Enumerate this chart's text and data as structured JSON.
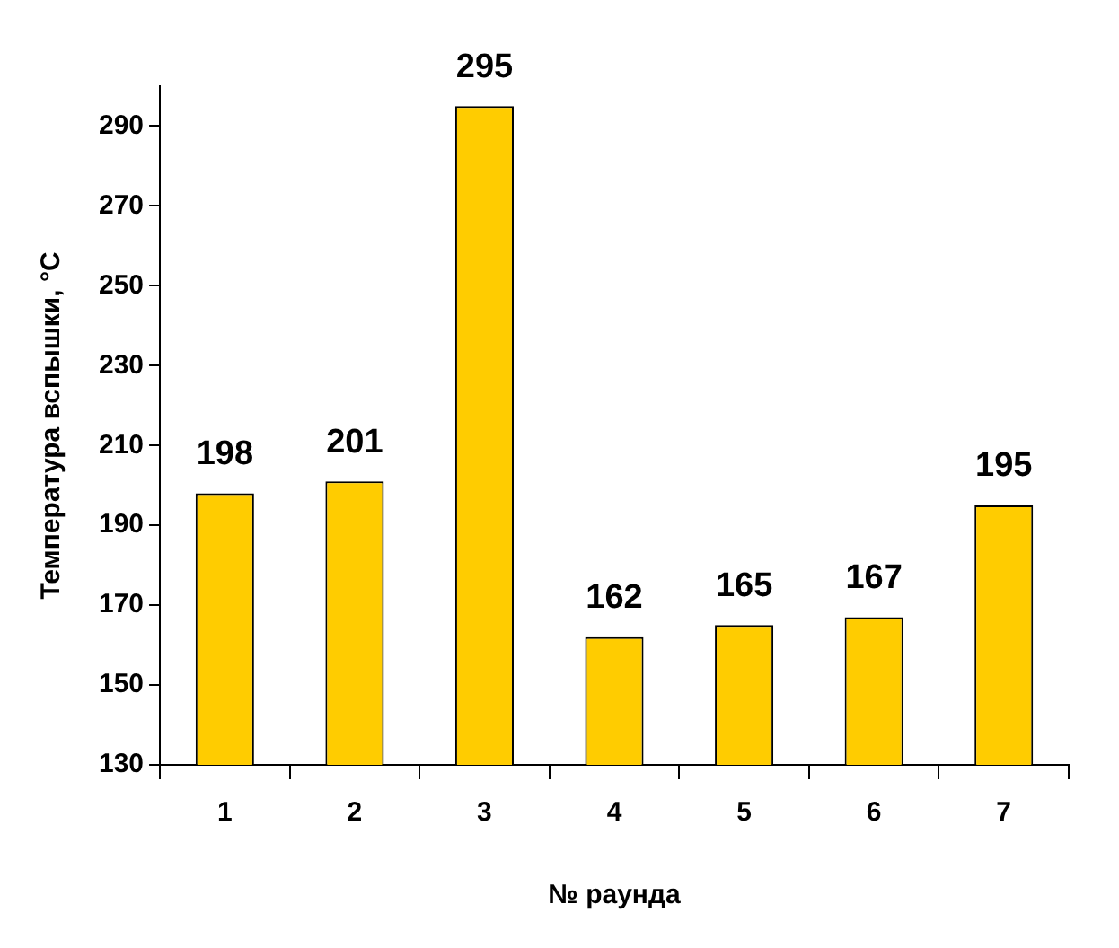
{
  "chart_data": {
    "type": "bar",
    "xlabel": "№ раунда",
    "ylabel": "Температура вспышки, °C",
    "categories": [
      "1",
      "2",
      "3",
      "4",
      "5",
      "6",
      "7"
    ],
    "values": [
      198,
      201,
      295,
      162,
      165,
      167,
      195
    ],
    "color": "#ffcc00",
    "ylim": [
      130,
      300
    ],
    "yticks": [
      130,
      150,
      170,
      190,
      210,
      230,
      250,
      270,
      290
    ],
    "data_labels": true,
    "grid": false,
    "legend": false
  }
}
